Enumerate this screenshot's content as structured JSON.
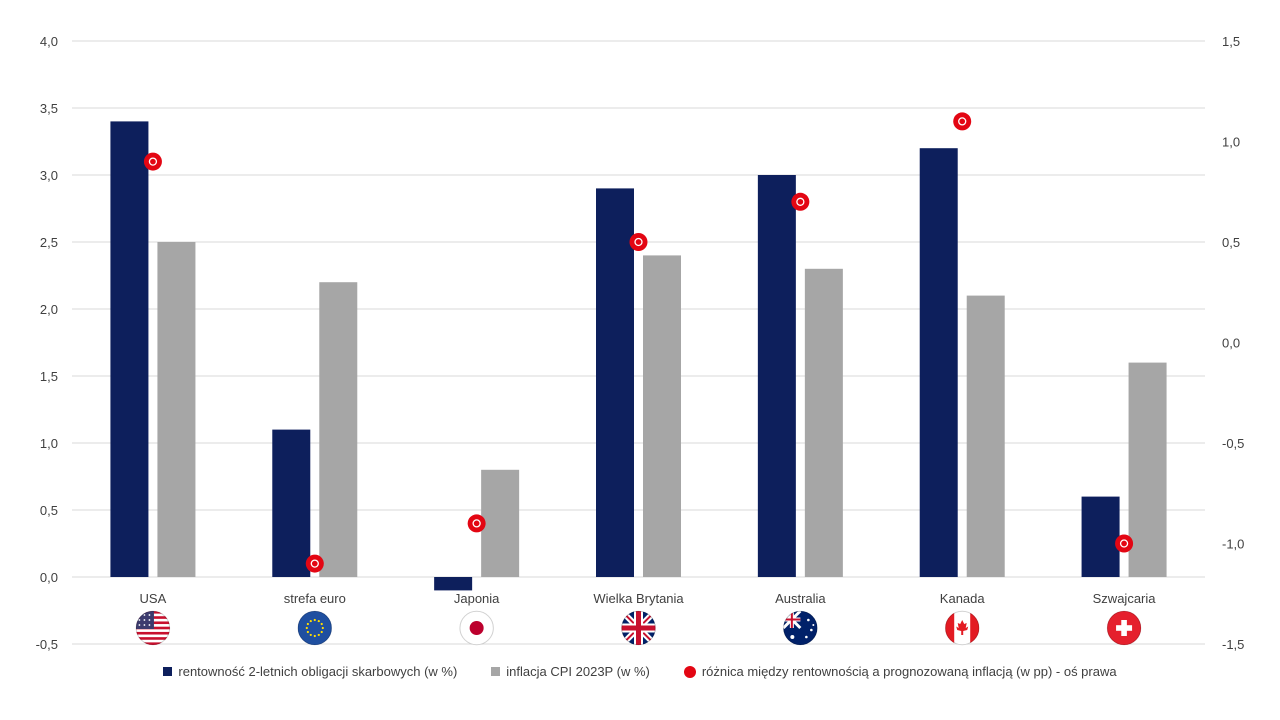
{
  "chart_data": {
    "type": "bar",
    "categories": [
      "USA",
      "strefa euro",
      "Japonia",
      "Wielka Brytania",
      "Australia",
      "Kanada",
      "Szwajcaria"
    ],
    "flags": [
      "us-flag-icon",
      "eu-flag-icon",
      "jp-flag-icon",
      "gb-flag-icon",
      "au-flag-icon",
      "ca-flag-icon",
      "ch-flag-icon"
    ],
    "series": [
      {
        "name": "rentowność 2-letnich obligacji skarbowych (w %)",
        "type": "bar",
        "axis": "left",
        "color": "#0d1f5c",
        "values": [
          3.4,
          1.1,
          -0.1,
          2.9,
          3.0,
          3.2,
          0.6
        ]
      },
      {
        "name": "inflacja CPI 2023P (w %)",
        "type": "bar",
        "axis": "left",
        "color": "#a6a6a6",
        "values": [
          2.5,
          2.2,
          0.8,
          2.4,
          2.3,
          2.1,
          1.6
        ]
      },
      {
        "name": "różnica między rentownością a prognozowaną inflacją (w pp) - oś prawa",
        "type": "scatter",
        "axis": "right",
        "color": "#e30613",
        "values": [
          0.9,
          -1.1,
          -0.9,
          0.5,
          0.7,
          1.1,
          -1.0
        ]
      }
    ],
    "y_left": {
      "min": -0.5,
      "max": 4.0,
      "ticks": [
        "4,0",
        "3,5",
        "3,0",
        "2,5",
        "2,0",
        "1,5",
        "1,0",
        "0,5",
        "0,0",
        "-0,5"
      ]
    },
    "y_right": {
      "min": -1.5,
      "max": 1.5,
      "ticks": [
        "1,5",
        "1,0",
        "0,5",
        "0,0",
        "-0,5",
        "-1,0",
        "-1,5"
      ]
    },
    "grid": true,
    "legend_position": "bottom"
  }
}
